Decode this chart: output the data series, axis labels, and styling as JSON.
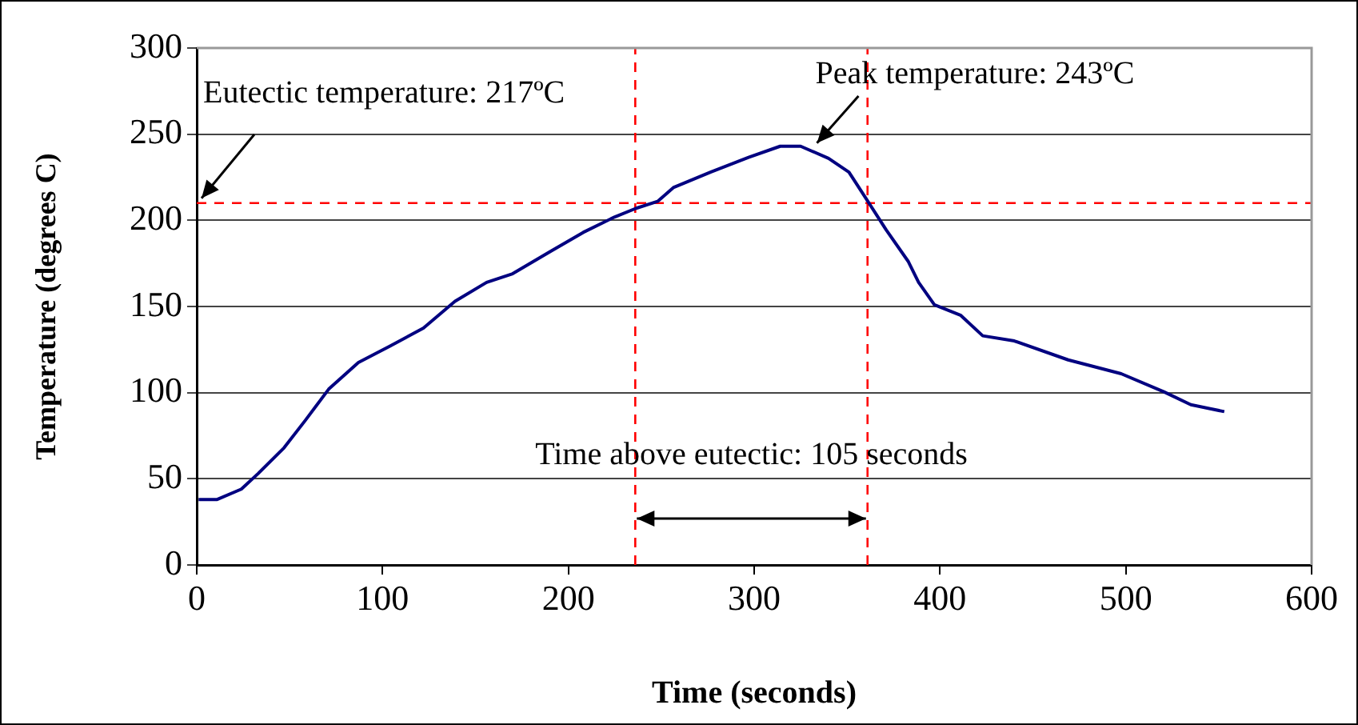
{
  "chart_data": {
    "type": "line",
    "xlabel": "Time (seconds)",
    "ylabel": "Temperature (degrees C)",
    "series": [
      {
        "color": "#000080",
        "x": [
          1,
          11,
          24,
          33,
          47,
          58.5,
          71,
          87,
          104,
          122,
          139,
          156,
          170,
          190.5,
          208,
          225,
          236.5,
          248,
          256.5,
          276.5,
          297,
          314,
          325,
          340,
          351,
          360,
          371,
          383,
          388.5,
          397,
          411,
          423,
          440,
          469,
          497.5,
          520.5,
          535,
          553
        ],
        "values": [
          38,
          38,
          44,
          53,
          68,
          84,
          102,
          117.5,
          127,
          137.5,
          153,
          164,
          169,
          182,
          193,
          202,
          207,
          211,
          219,
          228,
          236.5,
          243,
          243,
          236,
          228,
          213,
          194.5,
          176,
          164,
          151,
          145,
          133,
          130,
          119,
          111,
          100.5,
          93,
          89
        ]
      }
    ],
    "xlim": [
      0,
      600
    ],
    "xticks": [
      0,
      100,
      200,
      300,
      400,
      500,
      600
    ],
    "ylim": [
      0,
      300
    ],
    "yticks": [
      0,
      50,
      100,
      150,
      200,
      250,
      300
    ],
    "grid": "y",
    "legend": false,
    "marker": "none",
    "line_style": "solid",
    "ref_lines": [
      {
        "axis": "y",
        "value": 210,
        "color": "#ff0000",
        "line_style": "dashed"
      },
      {
        "axis": "x",
        "value": 236,
        "color": "#ff0000",
        "line_style": "dashed"
      },
      {
        "axis": "x",
        "value": 361,
        "color": "#ff0000",
        "line_style": "dashed"
      }
    ],
    "annotations": [
      {
        "text": "Eutectic temperature: 217ºC",
        "x": 0,
        "y": 210
      },
      {
        "text": "Peak temperature: 243ºC",
        "x": 320,
        "y": 243
      },
      "Time above eutectic: 105 seconds"
    ]
  }
}
